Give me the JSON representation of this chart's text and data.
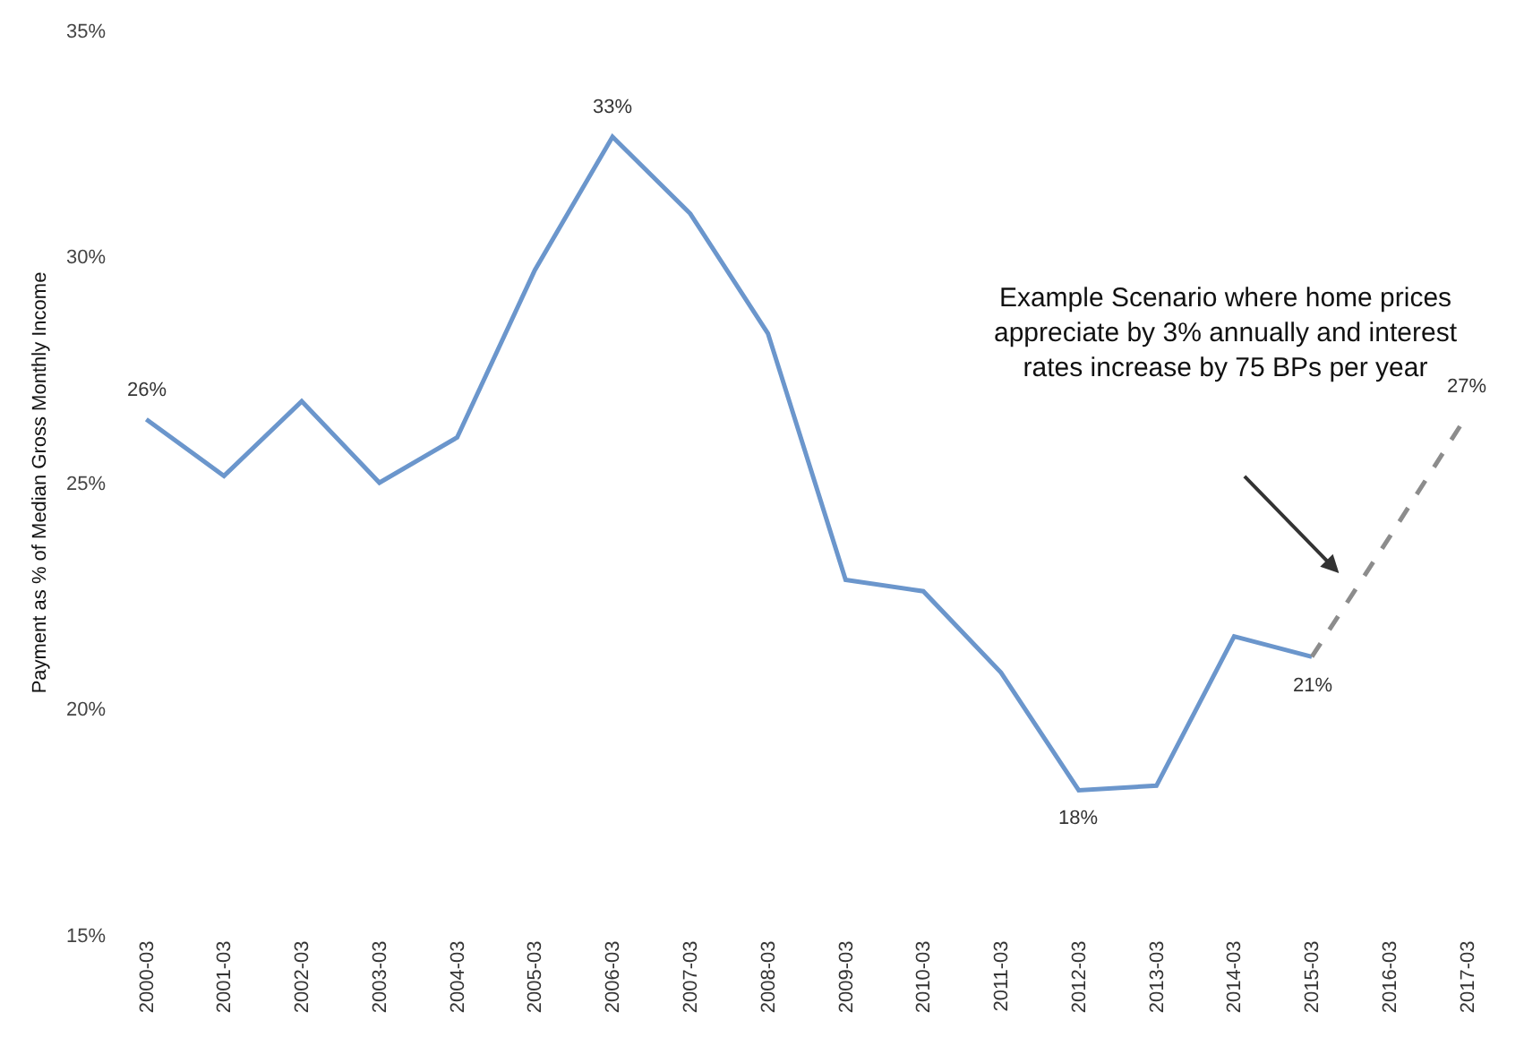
{
  "chart_data": {
    "type": "line",
    "ylabel": "Payment as % of Median Gross Monthly Income",
    "categories": [
      "2000-03",
      "2001-03",
      "2002-03",
      "2003-03",
      "2004-03",
      "2005-03",
      "2006-03",
      "2007-03",
      "2008-03",
      "2009-03",
      "2010-03",
      "2011-03",
      "2012-03",
      "2013-03",
      "2014-03",
      "2015-03",
      "2016-03",
      "2017-03"
    ],
    "series": [
      {
        "color": "#6b96cc",
        "line_style": "solid",
        "values": [
          26.4,
          25.15,
          26.8,
          25.0,
          26.0,
          29.7,
          32.65,
          30.95,
          28.3,
          22.85,
          22.6,
          20.8,
          18.2,
          18.3,
          21.6,
          21.15,
          null,
          null
        ],
        "value_labels": [
          "26%",
          null,
          null,
          null,
          null,
          null,
          "33%",
          null,
          null,
          null,
          null,
          null,
          "18%",
          null,
          null,
          "21%",
          null,
          null
        ]
      },
      {
        "color": "#8c8c8c",
        "line_style": "dashed",
        "values": [
          null,
          null,
          null,
          null,
          null,
          null,
          null,
          null,
          null,
          null,
          null,
          null,
          null,
          null,
          null,
          21.15,
          23.8,
          26.5
        ],
        "value_labels": [
          null,
          null,
          null,
          null,
          null,
          null,
          null,
          null,
          null,
          null,
          null,
          null,
          null,
          null,
          null,
          null,
          null,
          "27%"
        ]
      }
    ],
    "ylim": [
      15,
      35
    ],
    "yticks": [
      {
        "value": 15,
        "label": "15%"
      },
      {
        "value": 20,
        "label": "20%"
      },
      {
        "value": 25,
        "label": "25%"
      },
      {
        "value": 30,
        "label": "30%"
      },
      {
        "value": 35,
        "label": "35%"
      }
    ],
    "marker": "none",
    "annotations": [
      "Example Scenario where home prices appreciate by 3% annually and interest rates increase by 75 BPs per year"
    ]
  }
}
